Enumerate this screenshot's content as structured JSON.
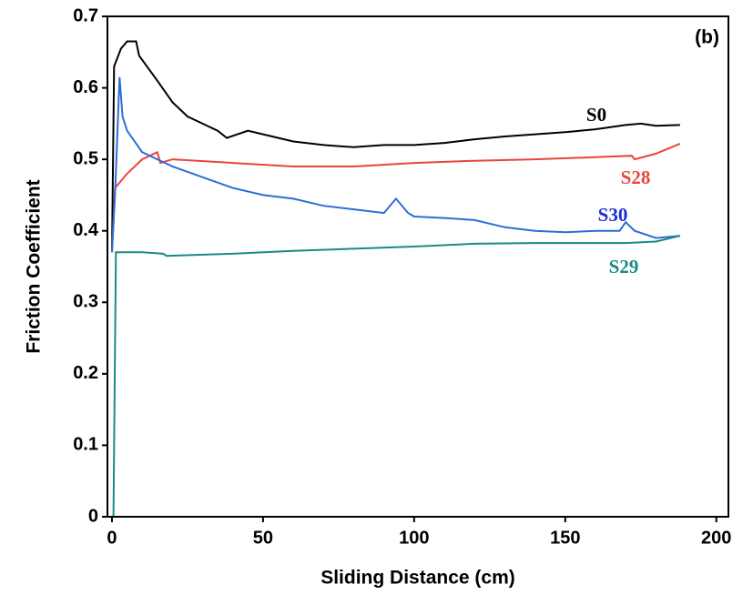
{
  "chart_data": {
    "type": "line",
    "xlabel": "Sliding Distance (cm)",
    "ylabel": "Friction Coefficient",
    "annotation": "(b)",
    "xlim": [
      -1.5,
      204
    ],
    "ylim": [
      0,
      0.7
    ],
    "xticks": [
      0,
      50,
      100,
      150,
      200
    ],
    "yticks": [
      0,
      0.1,
      0.2,
      0.3,
      0.4,
      0.5,
      0.6,
      0.7
    ],
    "series": [
      {
        "name": "S0",
        "color": "#000000",
        "x": [
          0,
          0.7,
          3,
          5,
          8,
          9,
          15,
          20,
          25,
          30,
          35,
          38,
          45,
          50,
          60,
          70,
          80,
          90,
          100,
          110,
          120,
          130,
          140,
          150,
          160,
          170,
          175,
          180,
          188
        ],
        "values": [
          0.37,
          0.63,
          0.655,
          0.665,
          0.665,
          0.645,
          0.61,
          0.58,
          0.56,
          0.55,
          0.54,
          0.53,
          0.54,
          0.535,
          0.525,
          0.52,
          0.517,
          0.52,
          0.52,
          0.523,
          0.528,
          0.532,
          0.535,
          0.538,
          0.542,
          0.548,
          0.55,
          0.547,
          0.548
        ]
      },
      {
        "name": "S28",
        "color": "#e8453c",
        "x": [
          0,
          1,
          5,
          10,
          15,
          16,
          20,
          40,
          60,
          80,
          100,
          120,
          140,
          160,
          172,
          173,
          180,
          188
        ],
        "values": [
          0.37,
          0.46,
          0.48,
          0.5,
          0.51,
          0.495,
          0.5,
          0.495,
          0.49,
          0.49,
          0.495,
          0.498,
          0.5,
          0.503,
          0.505,
          0.5,
          0.508,
          0.522
        ]
      },
      {
        "name": "S30",
        "color": "#2a6fd6",
        "x": [
          0,
          1,
          2.5,
          3.5,
          5,
          10,
          20,
          30,
          40,
          50,
          60,
          70,
          80,
          90,
          94,
          98,
          100,
          110,
          120,
          130,
          140,
          150,
          160,
          168,
          170,
          173,
          180,
          188
        ],
        "values": [
          0.37,
          0.45,
          0.615,
          0.56,
          0.54,
          0.51,
          0.49,
          0.475,
          0.46,
          0.45,
          0.445,
          0.435,
          0.43,
          0.425,
          0.445,
          0.425,
          0.42,
          0.418,
          0.415,
          0.405,
          0.4,
          0.398,
          0.4,
          0.4,
          0.412,
          0.4,
          0.39,
          0.393
        ]
      },
      {
        "name": "S29",
        "color": "#1a8a80",
        "x": [
          0,
          0.5,
          1.3,
          10,
          17,
          18,
          40,
          60,
          80,
          100,
          120,
          140,
          160,
          170,
          180,
          188
        ],
        "values": [
          0,
          0,
          0.37,
          0.37,
          0.368,
          0.365,
          0.368,
          0.372,
          0.375,
          0.378,
          0.382,
          0.383,
          0.383,
          0.383,
          0.385,
          0.393
        ]
      }
    ]
  }
}
